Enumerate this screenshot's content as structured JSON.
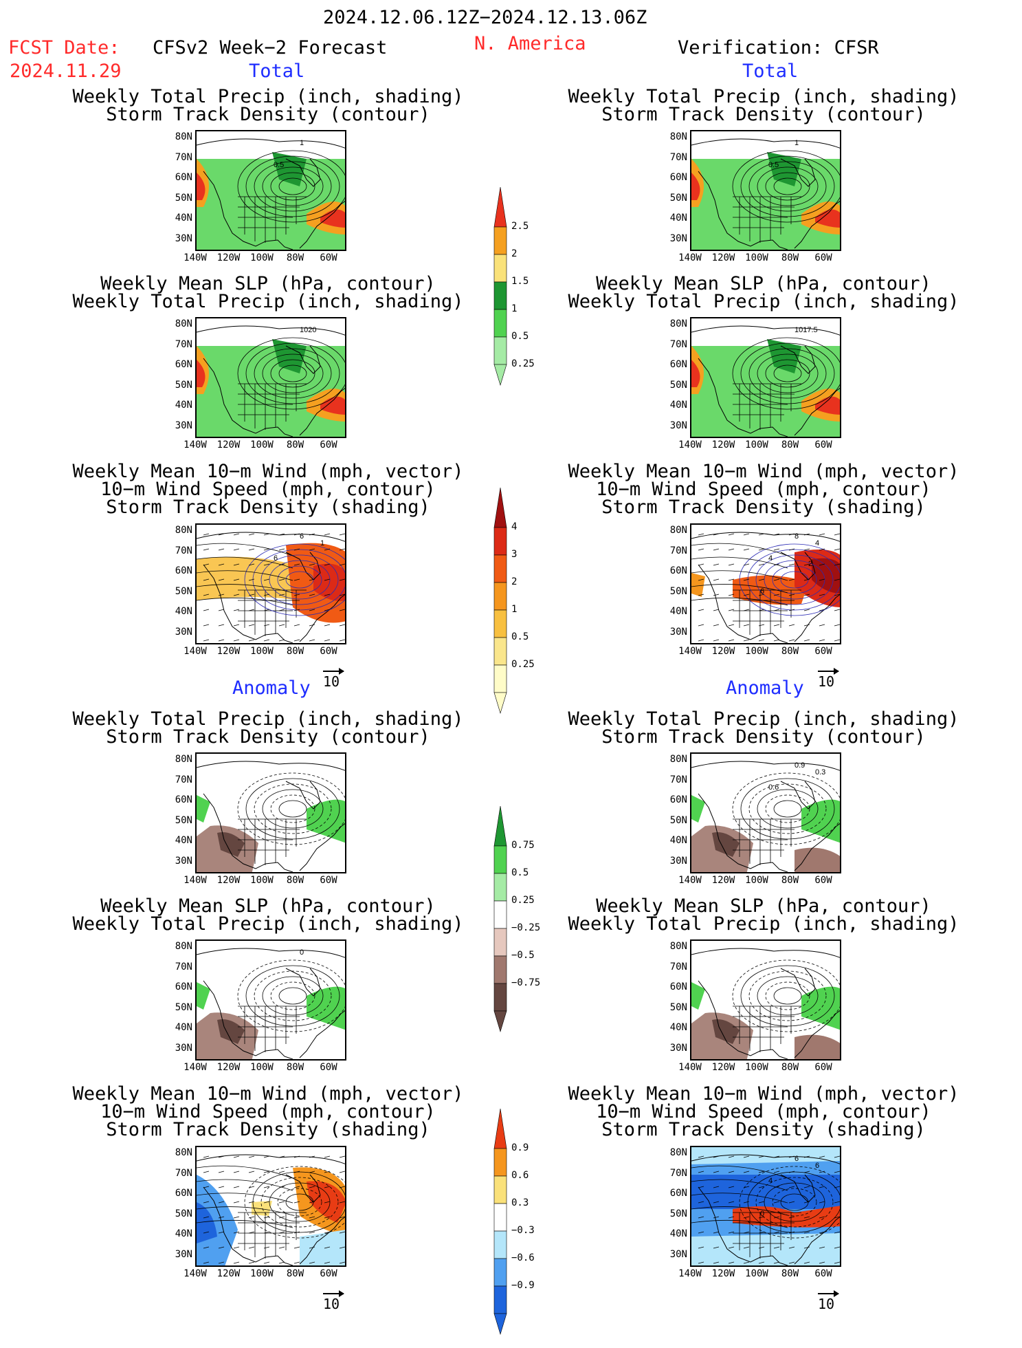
{
  "header": {
    "period": "2024.12.06.12Z−2024.12.13.06Z",
    "fcst_label": "FCST Date:",
    "fcst_date": "2024.11.29",
    "left_title": "CFSv2 Week−2 Forecast",
    "region": "N. America",
    "right_title": "Verification: CFSR"
  },
  "sections": {
    "total": "Total",
    "anomaly": "Anomaly"
  },
  "panel_titles": {
    "precip_std": [
      "Weekly Total Precip (inch, shading)",
      "Storm Track Density (contour)"
    ],
    "slp_precip": [
      "Weekly Mean SLP (hPa, contour)",
      "Weekly Total Precip (inch, shading)"
    ],
    "wind": [
      "Weekly Mean 10−m Wind (mph, vector)",
      "10−m Wind Speed (mph, contour)",
      "Storm Track Density (shading)"
    ]
  },
  "axes": {
    "lat": [
      "80N",
      "70N",
      "60N",
      "50N",
      "40N",
      "30N"
    ],
    "lon": [
      "140W",
      "120W",
      "100W",
      "80W",
      "60W"
    ]
  },
  "contour_labels": {
    "fc_total_precip": [
      "1",
      "0.5"
    ],
    "obs_total_precip": [
      "1",
      "0.5"
    ],
    "fc_total_slp": [
      "1020"
    ],
    "obs_total_slp": [
      "1017.5"
    ],
    "fc_total_wind": [
      "6",
      "6",
      "1"
    ],
    "obs_total_wind": [
      "8",
      "4",
      "4",
      "6",
      "2"
    ],
    "obs_anom_precip": [
      "0.9",
      "0.6",
      "0.3"
    ],
    "fc_anom_slp": [
      "0"
    ],
    "obs_anom_wind": [
      "6",
      "4",
      "6",
      "0"
    ]
  },
  "vector_ref": "10",
  "colorbars": {
    "precip_total": {
      "labels": [
        "2.5",
        "2",
        "1.5",
        "1",
        "0.5",
        "0.25"
      ],
      "colors": [
        "#e8321e",
        "#f5a020",
        "#fae27a",
        "#1e9632",
        "#50d250",
        "#a5eba5"
      ]
    },
    "storm_total": {
      "labels": [
        "4",
        "3",
        "2",
        "1",
        "0.5",
        "0.25"
      ],
      "colors": [
        "#a01010",
        "#dc2a16",
        "#f05a14",
        "#f5961e",
        "#f8c040",
        "#fae68c",
        "#fffcc8"
      ]
    },
    "precip_anom": {
      "labels": [
        "0.75",
        "0.5",
        "0.25",
        "−0.25",
        "−0.5",
        "−0.75"
      ],
      "colors": [
        "#1e9632",
        "#50d250",
        "#a5eba5",
        "#ffffff",
        "#e6c8be",
        "#a0786e",
        "#644640"
      ]
    },
    "storm_anom": {
      "labels": [
        "0.9",
        "0.6",
        "0.3",
        "−0.3",
        "−0.6",
        "−0.9"
      ],
      "colors": [
        "#e83c14",
        "#f5961e",
        "#fae17a",
        "#ffffff",
        "#b4e6fa",
        "#50a0f0",
        "#1e64dc"
      ]
    }
  },
  "colors": {
    "header_red": "#ff2a2a",
    "section_blue": "#1e2dff"
  }
}
